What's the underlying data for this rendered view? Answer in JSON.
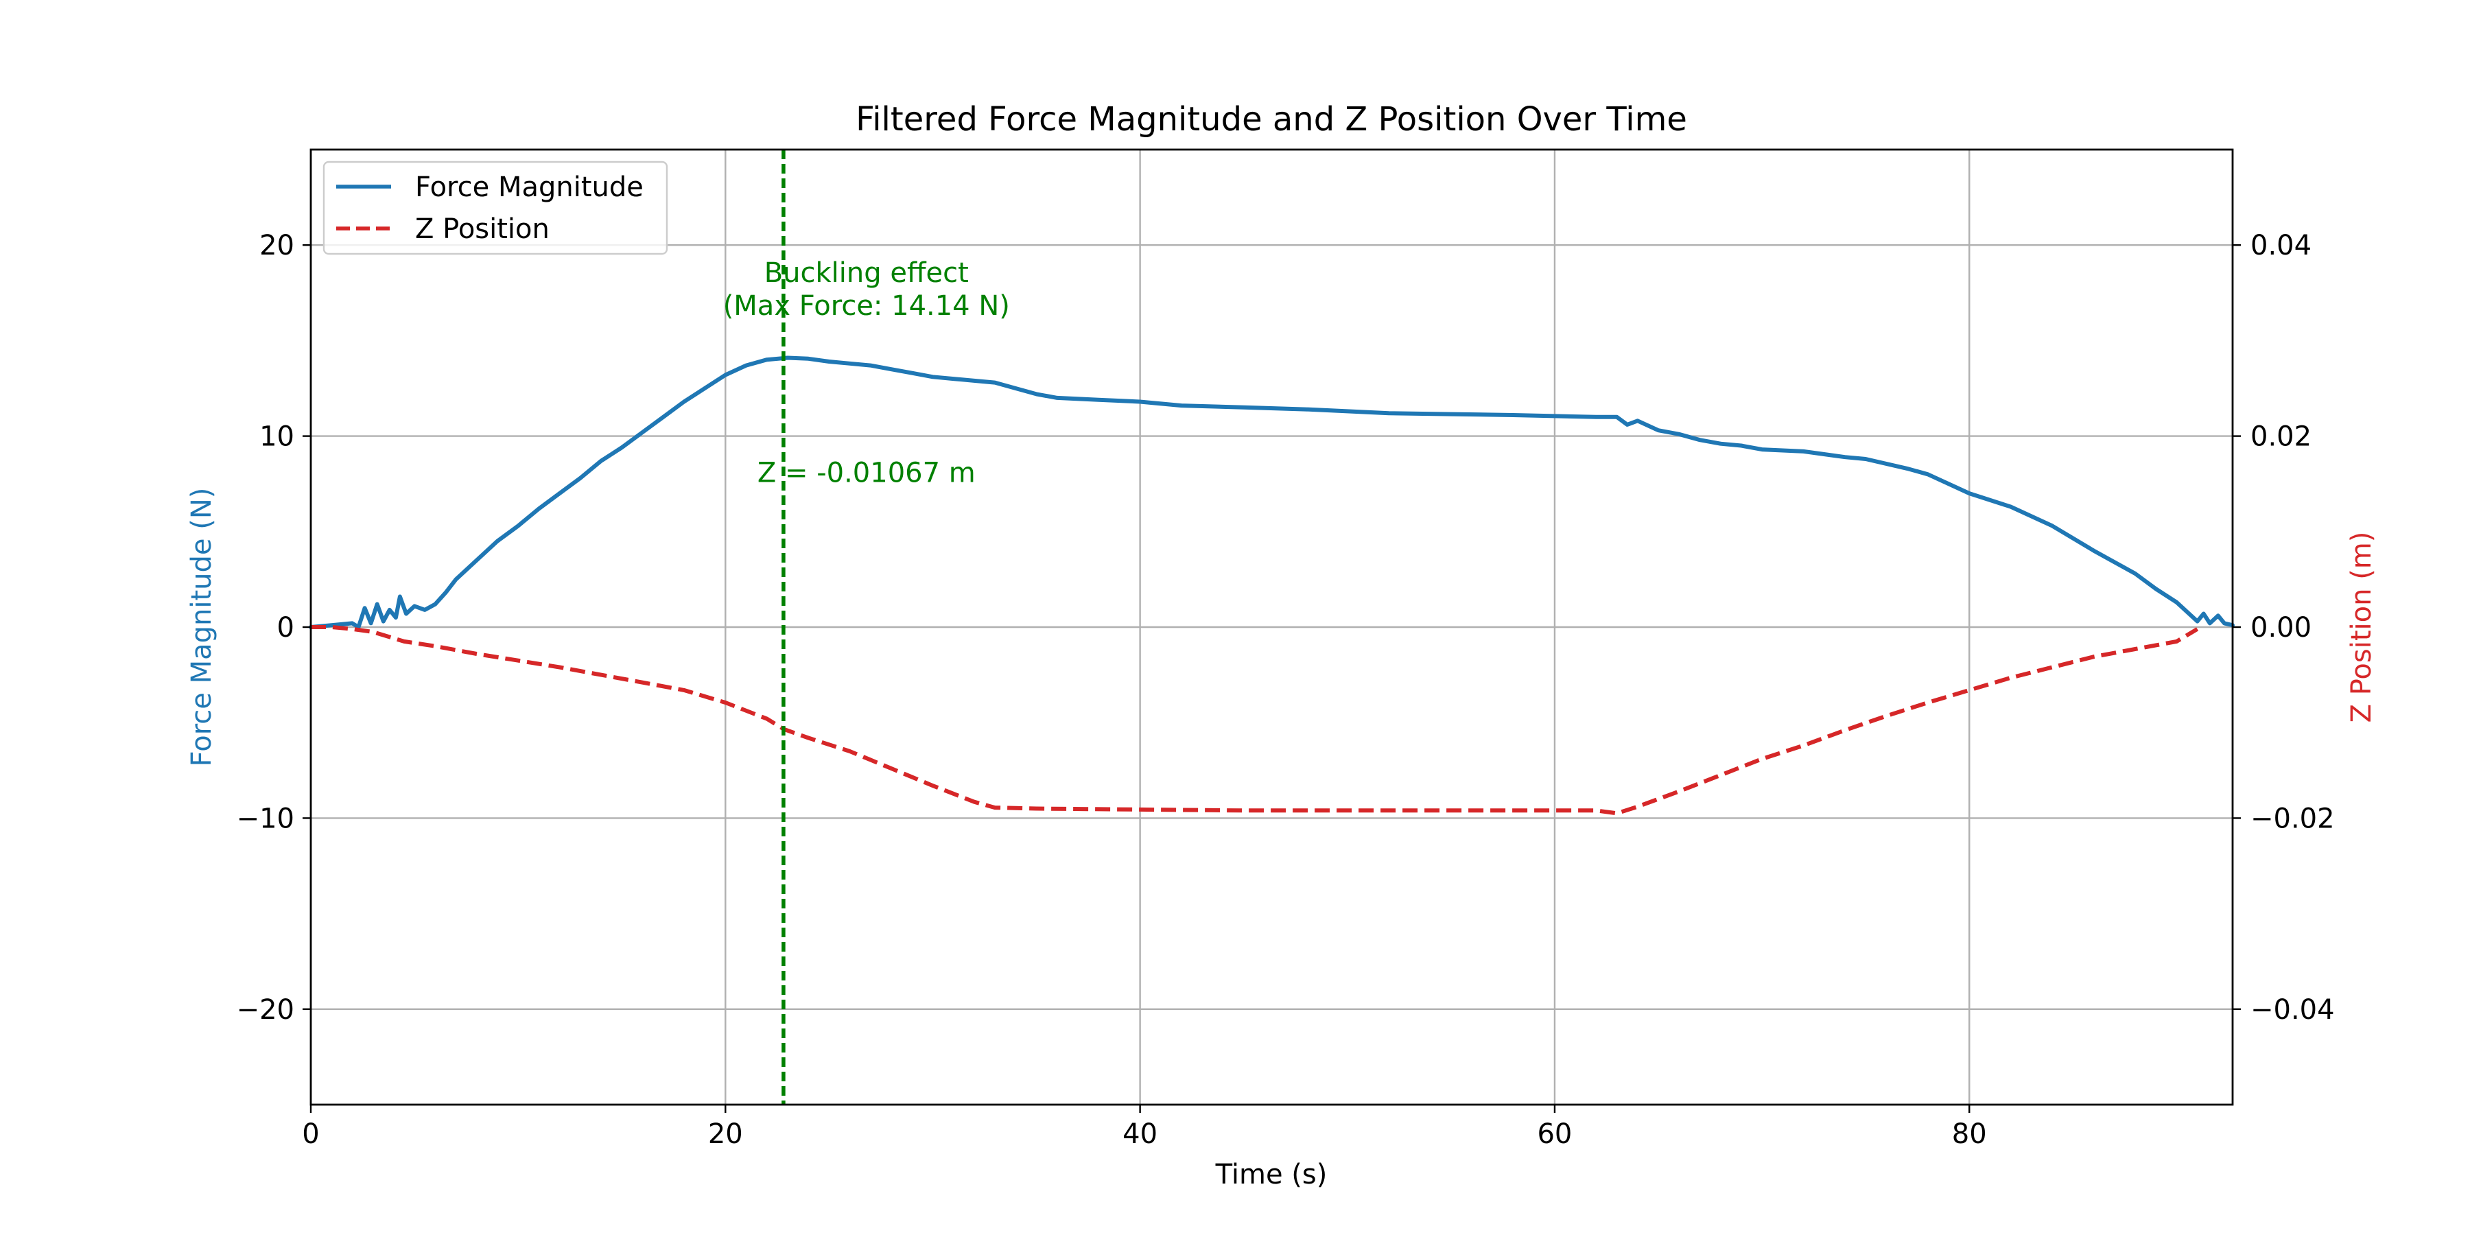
{
  "chart_data": {
    "type": "line",
    "title": "Filtered Force Magnitude and Z Position Over Time",
    "xlabel": "Time (s)",
    "ylabel_left": "Force Magnitude (N)",
    "ylabel_right": "Z Position (m)",
    "xlim": [
      0,
      92.7
    ],
    "ylim_left": [
      -25,
      25
    ],
    "ylim_right": [
      -0.05,
      0.05
    ],
    "x_ticks": [
      0,
      20,
      40,
      60,
      80
    ],
    "x_tick_labels": [
      "0",
      "20",
      "40",
      "60",
      "80"
    ],
    "y_left_ticks": [
      -20,
      -10,
      0,
      10,
      20
    ],
    "y_left_tick_labels": [
      "−20",
      "−10",
      "0",
      "10",
      "20"
    ],
    "y_right_ticks": [
      -0.04,
      -0.02,
      0.0,
      0.02,
      0.04
    ],
    "y_right_tick_labels": [
      "−0.04",
      "−0.02",
      "0.00",
      "0.02",
      "0.04"
    ],
    "grid": true,
    "legend_position": "top-left",
    "colors": {
      "force": "#1f77b4",
      "z": "#d62728",
      "annotation": "#008000"
    },
    "series": [
      {
        "name": "Force Magnitude",
        "axis": "left",
        "style": "solid",
        "points": [
          [
            0,
            0.0
          ],
          [
            1,
            0.1
          ],
          [
            2,
            0.2
          ],
          [
            2.3,
            0.0
          ],
          [
            2.6,
            1.0
          ],
          [
            2.9,
            0.2
          ],
          [
            3.2,
            1.2
          ],
          [
            3.5,
            0.3
          ],
          [
            3.8,
            0.9
          ],
          [
            4.1,
            0.5
          ],
          [
            4.3,
            1.6
          ],
          [
            4.6,
            0.7
          ],
          [
            5,
            1.1
          ],
          [
            5.5,
            0.9
          ],
          [
            6,
            1.2
          ],
          [
            6.5,
            1.8
          ],
          [
            7,
            2.5
          ],
          [
            8,
            3.5
          ],
          [
            9,
            4.5
          ],
          [
            10,
            5.3
          ],
          [
            11,
            6.2
          ],
          [
            12,
            7.0
          ],
          [
            13,
            7.8
          ],
          [
            14,
            8.7
          ],
          [
            15,
            9.4
          ],
          [
            16,
            10.2
          ],
          [
            17,
            11.0
          ],
          [
            18,
            11.8
          ],
          [
            19,
            12.5
          ],
          [
            20,
            13.2
          ],
          [
            21,
            13.7
          ],
          [
            22,
            14.0
          ],
          [
            23,
            14.1
          ],
          [
            24,
            14.05
          ],
          [
            25,
            13.9
          ],
          [
            26,
            13.8
          ],
          [
            27,
            13.7
          ],
          [
            28,
            13.5
          ],
          [
            29,
            13.3
          ],
          [
            30,
            13.1
          ],
          [
            31,
            13.0
          ],
          [
            32,
            12.9
          ],
          [
            33,
            12.8
          ],
          [
            34,
            12.5
          ],
          [
            35,
            12.2
          ],
          [
            36,
            12.0
          ],
          [
            38,
            11.9
          ],
          [
            40,
            11.8
          ],
          [
            42,
            11.6
          ],
          [
            45,
            11.5
          ],
          [
            48,
            11.4
          ],
          [
            50,
            11.3
          ],
          [
            52,
            11.2
          ],
          [
            55,
            11.15
          ],
          [
            58,
            11.1
          ],
          [
            60,
            11.05
          ],
          [
            62,
            11.0
          ],
          [
            63,
            11.0
          ],
          [
            63.5,
            10.6
          ],
          [
            64,
            10.8
          ],
          [
            65,
            10.3
          ],
          [
            66,
            10.1
          ],
          [
            67,
            9.8
          ],
          [
            68,
            9.6
          ],
          [
            69,
            9.5
          ],
          [
            70,
            9.3
          ],
          [
            72,
            9.2
          ],
          [
            74,
            8.9
          ],
          [
            75,
            8.8
          ],
          [
            77,
            8.3
          ],
          [
            78,
            8.0
          ],
          [
            80,
            7.0
          ],
          [
            82,
            6.3
          ],
          [
            84,
            5.3
          ],
          [
            86,
            4.0
          ],
          [
            88,
            2.8
          ],
          [
            89,
            2.0
          ],
          [
            90,
            1.3
          ],
          [
            90.5,
            0.8
          ],
          [
            91,
            0.3
          ],
          [
            91.3,
            0.7
          ],
          [
            91.6,
            0.2
          ],
          [
            92,
            0.6
          ],
          [
            92.3,
            0.2
          ],
          [
            92.7,
            0.1
          ]
        ]
      },
      {
        "name": "Z Position",
        "axis": "right",
        "style": "dashed",
        "points": [
          [
            0,
            0.0
          ],
          [
            1,
            0.0
          ],
          [
            2,
            -0.0002
          ],
          [
            3,
            -0.0005
          ],
          [
            4.5,
            -0.0015
          ],
          [
            6,
            -0.002
          ],
          [
            8,
            -0.0028
          ],
          [
            10,
            -0.0035
          ],
          [
            12,
            -0.0042
          ],
          [
            14,
            -0.005
          ],
          [
            16,
            -0.0058
          ],
          [
            18,
            -0.0066
          ],
          [
            20,
            -0.0079
          ],
          [
            22,
            -0.0096
          ],
          [
            22.8,
            -0.01067
          ],
          [
            24,
            -0.0116
          ],
          [
            26,
            -0.013
          ],
          [
            28,
            -0.0148
          ],
          [
            30,
            -0.0166
          ],
          [
            32,
            -0.0183
          ],
          [
            33,
            -0.0189
          ],
          [
            35,
            -0.019
          ],
          [
            40,
            -0.0191
          ],
          [
            45,
            -0.0192
          ],
          [
            50,
            -0.0192
          ],
          [
            55,
            -0.0192
          ],
          [
            60,
            -0.0192
          ],
          [
            62,
            -0.0192
          ],
          [
            63,
            -0.0195
          ],
          [
            64,
            -0.0188
          ],
          [
            66,
            -0.0172
          ],
          [
            68,
            -0.0155
          ],
          [
            70,
            -0.0138
          ],
          [
            72,
            -0.0124
          ],
          [
            74,
            -0.0108
          ],
          [
            76,
            -0.0093
          ],
          [
            78,
            -0.0079
          ],
          [
            80,
            -0.0066
          ],
          [
            82,
            -0.0053
          ],
          [
            84,
            -0.0042
          ],
          [
            86,
            -0.0031
          ],
          [
            88,
            -0.0023
          ],
          [
            90,
            -0.0015
          ],
          [
            91,
            -0.0002
          ]
        ]
      }
    ],
    "annotations": {
      "vline_x": 22.8,
      "buckling_text_line1": "Buckling effect",
      "buckling_text_line2": "(Max Force: 14.14 N)",
      "buckling_text_x": 26.8,
      "buckling_text_y": 18,
      "z_text": "Z = -0.01067 m",
      "z_text_x": 26.8,
      "z_text_y": 7.6
    }
  }
}
